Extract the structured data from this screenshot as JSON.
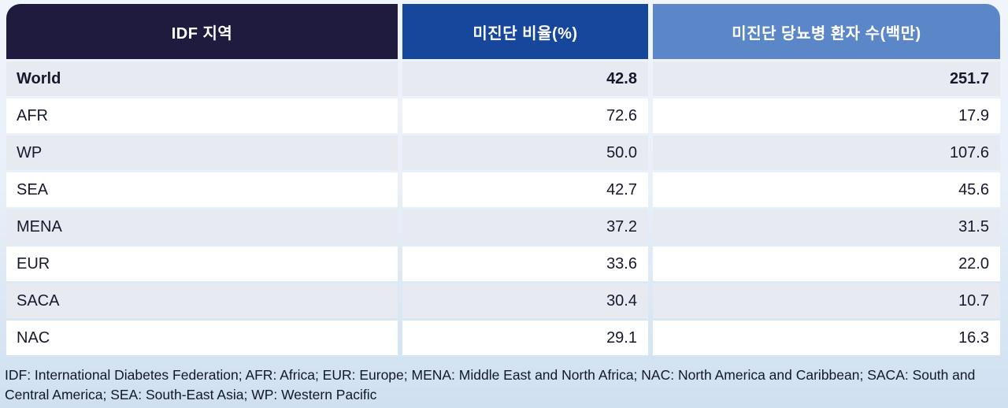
{
  "chart_data": {
    "type": "table",
    "title": "",
    "columns": [
      "IDF 지역",
      "미진단 비율(%)",
      "미진단 당뇨병 환자 수(백만)"
    ],
    "rows": [
      {
        "region": "World",
        "pct": "42.8",
        "count": "251.7",
        "bold": true
      },
      {
        "region": "AFR",
        "pct": "72.6",
        "count": "17.9",
        "bold": false
      },
      {
        "region": "WP",
        "pct": "50.0",
        "count": "107.6",
        "bold": false
      },
      {
        "region": "SEA",
        "pct": "42.7",
        "count": "45.6",
        "bold": false
      },
      {
        "region": "MENA",
        "pct": "37.2",
        "count": "31.5",
        "bold": false
      },
      {
        "region": "EUR",
        "pct": "33.6",
        "count": "22.0",
        "bold": false
      },
      {
        "region": "SACA",
        "pct": "30.4",
        "count": "10.7",
        "bold": false
      },
      {
        "region": "NAC",
        "pct": "29.1",
        "count": "16.3",
        "bold": false
      }
    ]
  },
  "footnote": "IDF: International Diabetes Federation; AFR: Africa; EUR: Europe; MENA: Middle East and North Africa; NAC: North America and Caribbean; SACA: South and Central America; SEA: South-East Asia; WP: Western Pacific",
  "colors": {
    "header_region_bg": "#1f1b3e",
    "header_pct_bg": "#17479d",
    "header_count_bg": "#5b87c8",
    "row_alt_bg": "#e7eaf1",
    "row_plain_bg": "#ffffff",
    "text": "#15192c"
  }
}
